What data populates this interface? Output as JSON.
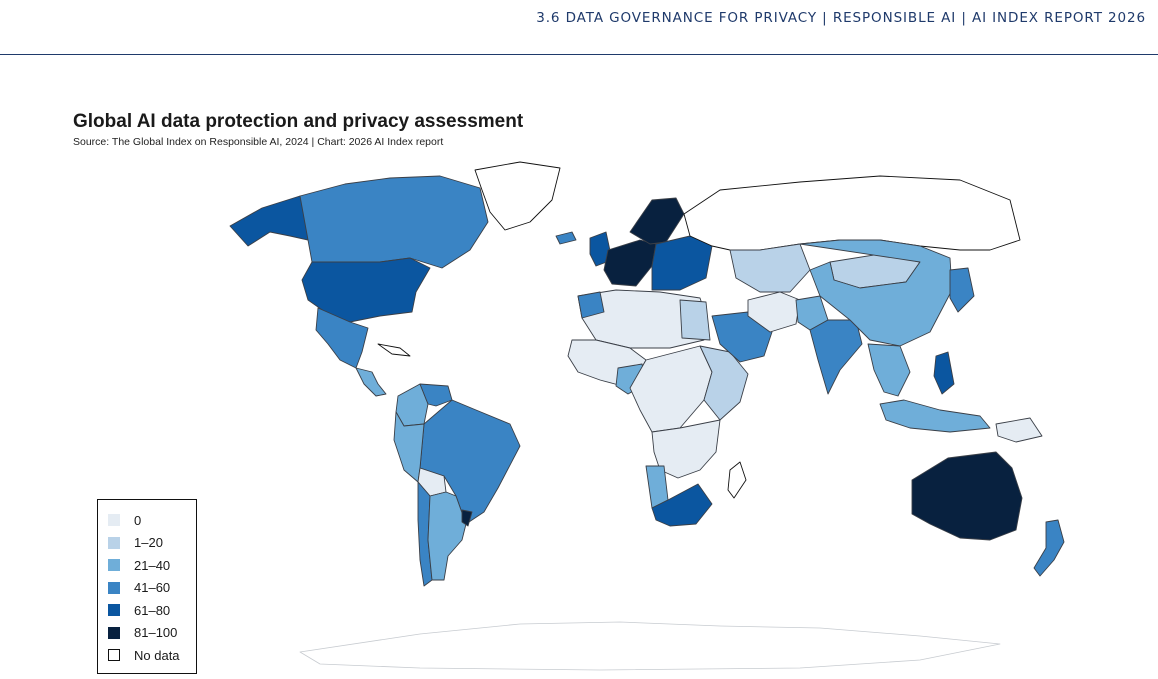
{
  "header": {
    "text": "3.6 DATA GOVERNANCE FOR PRIVACY | RESPONSIBLE AI | AI INDEX REPORT 2026"
  },
  "chart_data": {
    "type": "choropleth",
    "title": "Global AI data protection and privacy assessment",
    "source": "Source: The Global Index on Responsible AI, 2024 | Chart: 2026 AI Index report",
    "legend": {
      "placement": "bottom-left",
      "bins": [
        {
          "label": "0",
          "color": "#e5ecf3"
        },
        {
          "label": "1–20",
          "color": "#b9d2e8"
        },
        {
          "label": "21–40",
          "color": "#6faed9"
        },
        {
          "label": "41–60",
          "color": "#3a84c4"
        },
        {
          "label": "61–80",
          "color": "#0b56a0"
        },
        {
          "label": "81–100",
          "color": "#08213f"
        },
        {
          "label": "No data",
          "color": "#ffffff"
        }
      ]
    },
    "regions": [
      {
        "name": "Alaska",
        "bin": 4
      },
      {
        "name": "Canada",
        "bin": 3
      },
      {
        "name": "Greenland",
        "bin": 6
      },
      {
        "name": "United States",
        "bin": 4
      },
      {
        "name": "Mexico",
        "bin": 3
      },
      {
        "name": "Central America",
        "bin": 2
      },
      {
        "name": "Cuba",
        "bin": 6
      },
      {
        "name": "Colombia",
        "bin": 2
      },
      {
        "name": "Venezuela",
        "bin": 3
      },
      {
        "name": "Brazil",
        "bin": 3
      },
      {
        "name": "Peru",
        "bin": 2
      },
      {
        "name": "Bolivia",
        "bin": 0
      },
      {
        "name": "Chile",
        "bin": 3
      },
      {
        "name": "Argentina",
        "bin": 2
      },
      {
        "name": "Uruguay",
        "bin": 5
      },
      {
        "name": "Iceland",
        "bin": 3
      },
      {
        "name": "United Kingdom",
        "bin": 4
      },
      {
        "name": "Western Europe",
        "bin": 5
      },
      {
        "name": "Scandinavia",
        "bin": 5
      },
      {
        "name": "Eastern Europe",
        "bin": 4
      },
      {
        "name": "Russia",
        "bin": 6
      },
      {
        "name": "North Africa",
        "bin": 0
      },
      {
        "name": "Morocco",
        "bin": 3
      },
      {
        "name": "Egypt",
        "bin": 1
      },
      {
        "name": "West Africa",
        "bin": 0
      },
      {
        "name": "Nigeria",
        "bin": 2
      },
      {
        "name": "Central Africa",
        "bin": 0
      },
      {
        "name": "East Africa",
        "bin": 1
      },
      {
        "name": "Southern Africa",
        "bin": 0
      },
      {
        "name": "Namibia",
        "bin": 2
      },
      {
        "name": "South Africa",
        "bin": 4
      },
      {
        "name": "Madagascar",
        "bin": 6
      },
      {
        "name": "Saudi Arabia",
        "bin": 3
      },
      {
        "name": "Iran",
        "bin": 0
      },
      {
        "name": "Central Asia",
        "bin": 1
      },
      {
        "name": "Pakistan",
        "bin": 2
      },
      {
        "name": "India",
        "bin": 3
      },
      {
        "name": "Mongolia",
        "bin": 1
      },
      {
        "name": "China",
        "bin": 2
      },
      {
        "name": "Japan",
        "bin": 3
      },
      {
        "name": "Southeast Asia",
        "bin": 2
      },
      {
        "name": "Philippines",
        "bin": 4
      },
      {
        "name": "Indonesia",
        "bin": 2
      },
      {
        "name": "Papua New Guinea",
        "bin": 0
      },
      {
        "name": "Australia",
        "bin": 5
      },
      {
        "name": "New Zealand",
        "bin": 3
      },
      {
        "name": "Antarctica",
        "bin": 6
      }
    ]
  }
}
